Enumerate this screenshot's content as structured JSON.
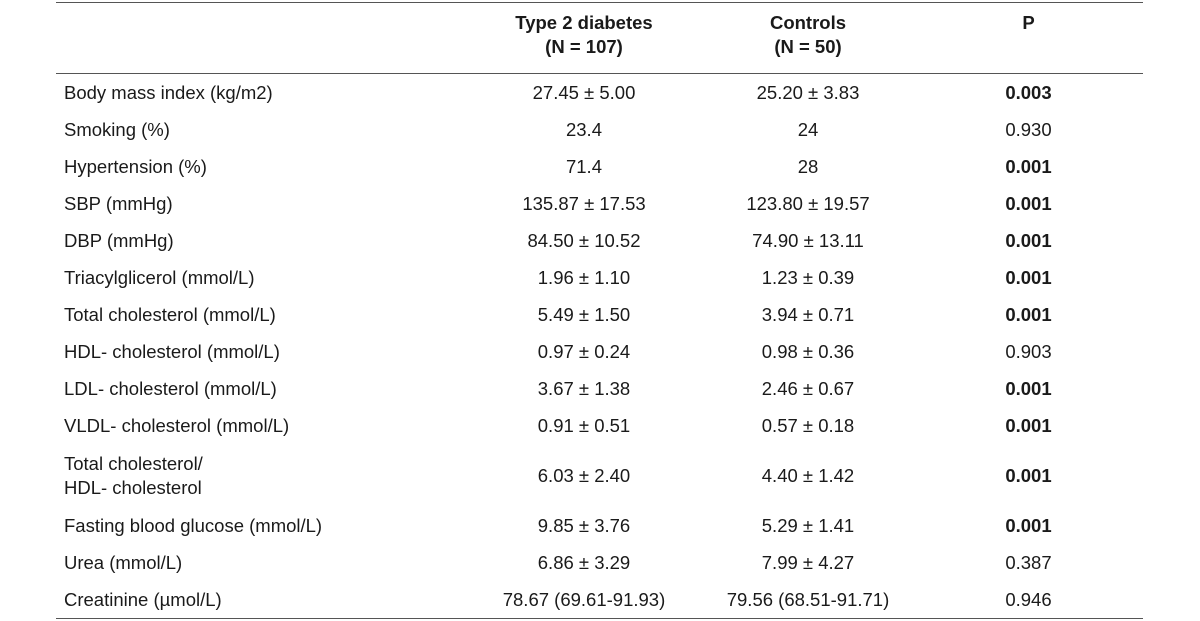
{
  "header": {
    "col1_line1": "Type 2 diabetes",
    "col1_line2": "(N = 107)",
    "col2_line1": "Controls",
    "col2_line2": "(N = 50)",
    "col3": "P"
  },
  "rows": [
    {
      "label": "Body mass index (kg/m2)",
      "t2d": "27.45 ± 5.00",
      "ctrl": "25.20 ± 3.83",
      "p": "0.003",
      "sig": true
    },
    {
      "label": "Smoking (%)",
      "t2d": "23.4",
      "ctrl": "24",
      "p": "0.930",
      "sig": false
    },
    {
      "label": "Hypertension (%)",
      "t2d": "71.4",
      "ctrl": "28",
      "p": "0.001",
      "sig": true
    },
    {
      "label": "SBP (mmHg)",
      "t2d": "135.87 ± 17.53",
      "ctrl": "123.80 ± 19.57",
      "p": "0.001",
      "sig": true
    },
    {
      "label": "DBP (mmHg)",
      "t2d": "84.50 ± 10.52",
      "ctrl": "74.90 ± 13.11",
      "p": "0.001",
      "sig": true
    },
    {
      "label": "Triacylglicerol (mmol/L)",
      "t2d": "1.96 ± 1.10",
      "ctrl": "1.23 ± 0.39",
      "p": "0.001",
      "sig": true
    },
    {
      "label": "Total cholesterol (mmol/L)",
      "t2d": "5.49 ± 1.50",
      "ctrl": "3.94 ± 0.71",
      "p": "0.001",
      "sig": true
    },
    {
      "label": "HDL- cholesterol (mmol/L)",
      "t2d": "0.97 ± 0.24",
      "ctrl": "0.98 ± 0.36",
      "p": "0.903",
      "sig": false
    },
    {
      "label": "LDL- cholesterol (mmol/L)",
      "t2d": "3.67 ± 1.38",
      "ctrl": "2.46 ± 0.67",
      "p": "0.001",
      "sig": true
    },
    {
      "label": "VLDL- cholesterol (mmol/L)",
      "t2d": "0.91 ± 0.51",
      "ctrl": "0.57 ± 0.18",
      "p": "0.001",
      "sig": true
    },
    {
      "label_line1": "Total cholesterol/",
      "label_line2": "HDL- cholesterol",
      "t2d": "6.03 ± 2.40",
      "ctrl": "4.40 ± 1.42",
      "p": "0.001",
      "sig": true
    },
    {
      "label": "Fasting blood glucose (mmol/L)",
      "t2d": "9.85 ± 3.76",
      "ctrl": "5.29 ± 1.41",
      "p": "0.001",
      "sig": true
    },
    {
      "label": "Urea (mmol/L)",
      "t2d": "6.86 ± 3.29",
      "ctrl": "7.99 ± 4.27",
      "p": "0.387",
      "sig": false
    },
    {
      "label": "Creatinine (µmol/L)",
      "t2d": "78.67 (69.61-91.93)",
      "ctrl": "79.56 (68.51-91.71)",
      "p": "0.946",
      "sig": false
    }
  ]
}
